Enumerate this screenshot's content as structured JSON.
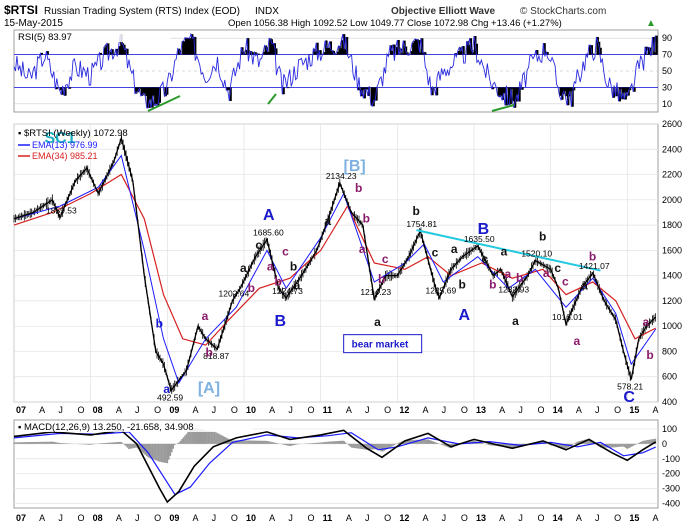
{
  "header": {
    "symbol": "$RTSI",
    "description": "Russian Trading System (RTS) Index (EOD)",
    "exchange": "INDX",
    "date": "15-May-2015",
    "watermark": "Objective Elliott Wave",
    "copyright": "© StockCharts.com",
    "quote": "Open 1056.38  High 1092.52  Low 1049.77  Close 1072.98  Chg +13.46 (+1.27%)",
    "up_arrow": "▲"
  },
  "rsi": {
    "label": "RSI(5) 83.97",
    "levels": [
      90,
      70,
      50,
      30,
      10
    ],
    "level_labels": [
      "90",
      "70",
      "50",
      "30",
      "10"
    ],
    "overbought": 70,
    "oversold": 30
  },
  "legend": {
    "price": "$RTSI (Weekly) 1072.98",
    "ema13": "EMA(13) 976.99",
    "ema34": "EMA(34) 985.21",
    "ema13_color": "#1a1aff",
    "ema34_color": "#d62020"
  },
  "macd": {
    "label": "MACD(12,26,9) 13.250, -21.658, 34.908",
    "ticks": [
      -400,
      -300,
      -200,
      -100,
      0,
      100
    ],
    "tick_labels": [
      "-400",
      "-300",
      "-200",
      "-100",
      "0",
      "100"
    ]
  },
  "x_axis": {
    "labels": [
      "07",
      "A",
      "J",
      "O",
      "08",
      "A",
      "J",
      "O",
      "09",
      "A",
      "J",
      "O",
      "10",
      "A",
      "J",
      "O",
      "11",
      "A",
      "J",
      "O",
      "12",
      "A",
      "J",
      "O",
      "13",
      "A",
      "J",
      "O",
      "14",
      "A",
      "J",
      "O",
      "15",
      "A"
    ]
  },
  "chart_data": {
    "type": "line",
    "title": "$RTSI Russian Trading System (RTS) Index (EOD)",
    "ylim": [
      400,
      2600
    ],
    "y_ticks": [
      400,
      600,
      800,
      1000,
      1200,
      1400,
      1600,
      1800,
      2000,
      2200,
      2400,
      2600
    ],
    "xlim": [
      2007.0,
      2015.4
    ],
    "price_points": [
      [
        2007.0,
        1850
      ],
      [
        2007.25,
        1900
      ],
      [
        2007.5,
        2000
      ],
      [
        2007.6,
        1859.53
      ],
      [
        2007.8,
        2150
      ],
      [
        2007.95,
        2250
      ],
      [
        2008.1,
        2050
      ],
      [
        2008.3,
        2300
      ],
      [
        2008.4,
        2487
      ],
      [
        2008.55,
        2150
      ],
      [
        2008.7,
        1400
      ],
      [
        2008.85,
        800
      ],
      [
        2008.95,
        700
      ],
      [
        2009.05,
        492.59
      ],
      [
        2009.25,
        650
      ],
      [
        2009.4,
        1000
      ],
      [
        2009.5,
        900
      ],
      [
        2009.65,
        818.87
      ],
      [
        2009.85,
        1202.64
      ],
      [
        2009.95,
        1300
      ],
      [
        2010.15,
        1550
      ],
      [
        2010.3,
        1685.6
      ],
      [
        2010.45,
        1300
      ],
      [
        2010.55,
        1224.73
      ],
      [
        2010.75,
        1400
      ],
      [
        2010.95,
        1600
      ],
      [
        2011.1,
        1850
      ],
      [
        2011.25,
        2134.23
      ],
      [
        2011.4,
        1900
      ],
      [
        2011.55,
        1800
      ],
      [
        2011.7,
        1214.23
      ],
      [
        2011.85,
        1400
      ],
      [
        2012.0,
        1400
      ],
      [
        2012.15,
        1550
      ],
      [
        2012.3,
        1754.81
      ],
      [
        2012.5,
        1300
      ],
      [
        2012.55,
        1225.69
      ],
      [
        2012.7,
        1450
      ],
      [
        2012.85,
        1550
      ],
      [
        2013.05,
        1635.5
      ],
      [
        2013.25,
        1400
      ],
      [
        2013.35,
        1450
      ],
      [
        2013.5,
        1232.93
      ],
      [
        2013.7,
        1400
      ],
      [
        2013.8,
        1520.1
      ],
      [
        2014.0,
        1450
      ],
      [
        2014.1,
        1300
      ],
      [
        2014.2,
        1016.01
      ],
      [
        2014.4,
        1300
      ],
      [
        2014.55,
        1421.07
      ],
      [
        2014.7,
        1200
      ],
      [
        2014.85,
        1050
      ],
      [
        2014.95,
        800
      ],
      [
        2015.05,
        578.21
      ],
      [
        2015.15,
        900
      ],
      [
        2015.25,
        1000
      ],
      [
        2015.37,
        1072.98
      ]
    ],
    "ema34_points": [
      [
        2007.0,
        1800
      ],
      [
        2007.5,
        1900
      ],
      [
        2008.0,
        2050
      ],
      [
        2008.4,
        2200
      ],
      [
        2008.7,
        1850
      ],
      [
        2008.95,
        1250
      ],
      [
        2009.2,
        900
      ],
      [
        2009.5,
        850
      ],
      [
        2009.8,
        1050
      ],
      [
        2010.2,
        1300
      ],
      [
        2010.6,
        1380
      ],
      [
        2011.0,
        1600
      ],
      [
        2011.35,
        1950
      ],
      [
        2011.7,
        1500
      ],
      [
        2012.1,
        1450
      ],
      [
        2012.4,
        1550
      ],
      [
        2012.7,
        1400
      ],
      [
        2013.1,
        1500
      ],
      [
        2013.5,
        1380
      ],
      [
        2013.9,
        1450
      ],
      [
        2014.2,
        1250
      ],
      [
        2014.55,
        1350
      ],
      [
        2014.85,
        1200
      ],
      [
        2015.1,
        900
      ],
      [
        2015.37,
        985.21
      ]
    ],
    "ema13_points": [
      [
        2007.0,
        1850
      ],
      [
        2007.6,
        1950
      ],
      [
        2008.1,
        2100
      ],
      [
        2008.4,
        2350
      ],
      [
        2008.7,
        1600
      ],
      [
        2008.95,
        900
      ],
      [
        2009.15,
        550
      ],
      [
        2009.5,
        900
      ],
      [
        2009.9,
        1150
      ],
      [
        2010.3,
        1600
      ],
      [
        2010.55,
        1300
      ],
      [
        2011.0,
        1700
      ],
      [
        2011.3,
        2050
      ],
      [
        2011.7,
        1350
      ],
      [
        2012.1,
        1500
      ],
      [
        2012.35,
        1650
      ],
      [
        2012.6,
        1350
      ],
      [
        2013.05,
        1550
      ],
      [
        2013.45,
        1300
      ],
      [
        2013.8,
        1450
      ],
      [
        2014.2,
        1150
      ],
      [
        2014.55,
        1380
      ],
      [
        2014.85,
        1100
      ],
      [
        2015.05,
        700
      ],
      [
        2015.37,
        976.99
      ]
    ],
    "price_labels": [
      {
        "x": 2007.6,
        "y": 1859.53,
        "text": "1859.53"
      },
      {
        "x": 2009.05,
        "y": 492.59,
        "text": "492.59"
      },
      {
        "x": 2009.65,
        "y": 818.87,
        "text": "818.87"
      },
      {
        "x": 2009.85,
        "y": 1202.64,
        "text": "1202.64"
      },
      {
        "x": 2010.3,
        "y": 1685.6,
        "text": "1685.60"
      },
      {
        "x": 2010.55,
        "y": 1224.73,
        "text": "1224.73"
      },
      {
        "x": 2011.25,
        "y": 2134.23,
        "text": "2134.23"
      },
      {
        "x": 2011.7,
        "y": 1214.23,
        "text": "1214.23"
      },
      {
        "x": 2012.3,
        "y": 1754.81,
        "text": "1754.81"
      },
      {
        "x": 2012.55,
        "y": 1225.69,
        "text": "1225.69"
      },
      {
        "x": 2013.05,
        "y": 1635.5,
        "text": "1635.50"
      },
      {
        "x": 2013.5,
        "y": 1232.93,
        "text": "1232.93"
      },
      {
        "x": 2013.8,
        "y": 1520.1,
        "text": "1520.10"
      },
      {
        "x": 2014.2,
        "y": 1016.01,
        "text": "1016.01"
      },
      {
        "x": 2014.55,
        "y": 1421.07,
        "text": "1421.07"
      },
      {
        "x": 2015.05,
        "y": 578.21,
        "text": "578.21"
      }
    ],
    "wave_labels": [
      {
        "x": 2009.0,
        "y": 470,
        "text": "a",
        "color": "#1a1acc"
      },
      {
        "x": 2009.5,
        "y": 1050,
        "text": "a",
        "color": "#8a1a6a"
      },
      {
        "x": 2009.55,
        "y": 760,
        "text": "b",
        "color": "#8a1a6a"
      },
      {
        "x": 2009.45,
        "y": 470,
        "text": "[A]",
        "color": "#7fb2e0"
      },
      {
        "x": 2008.9,
        "y": 990,
        "text": "b",
        "color": "#1a1acc"
      },
      {
        "x": 2010.0,
        "y": 1430,
        "text": "a",
        "color": "#111111"
      },
      {
        "x": 2010.1,
        "y": 1270,
        "text": "b",
        "color": "#8a1a6a"
      },
      {
        "x": 2010.2,
        "y": 1610,
        "text": "c",
        "color": "#111111"
      },
      {
        "x": 2010.3,
        "y": 1840,
        "text": "A",
        "color": "#1a1acc"
      },
      {
        "x": 2010.35,
        "y": 1440,
        "text": "a",
        "color": "#8a1a6a"
      },
      {
        "x": 2010.45,
        "y": 1320,
        "text": "b",
        "color": "#8a1a6a"
      },
      {
        "x": 2010.45,
        "y": 1000,
        "text": "B",
        "color": "#1a1acc"
      },
      {
        "x": 2010.65,
        "y": 1440,
        "text": "b",
        "color": "#111111"
      },
      {
        "x": 2010.7,
        "y": 1290,
        "text": "a",
        "color": "#111111"
      },
      {
        "x": 2010.55,
        "y": 1560,
        "text": "c",
        "color": "#8a1a6a"
      },
      {
        "x": 2011.1,
        "y": 1800,
        "text": "a",
        "color": "#111111"
      },
      {
        "x": 2011.35,
        "y": 2230,
        "text": "[B]",
        "color": "#7fb2e0"
      },
      {
        "x": 2011.5,
        "y": 2060,
        "text": "b",
        "color": "#8a1a6a"
      },
      {
        "x": 2011.6,
        "y": 1820,
        "text": "b",
        "color": "#8a1a6a"
      },
      {
        "x": 2011.55,
        "y": 1580,
        "text": "a",
        "color": "#8a1a6a"
      },
      {
        "x": 2011.85,
        "y": 1500,
        "text": "c",
        "color": "#8a1a6a"
      },
      {
        "x": 2011.8,
        "y": 1340,
        "text": "b",
        "color": "#8a1a6a"
      },
      {
        "x": 2011.75,
        "y": 1000,
        "text": "a",
        "color": "#111111"
      },
      {
        "x": 2012.25,
        "y": 1880,
        "text": "b",
        "color": "#111111"
      },
      {
        "x": 2012.5,
        "y": 1550,
        "text": "c",
        "color": "#111111"
      },
      {
        "x": 2012.85,
        "y": 1050,
        "text": "A",
        "color": "#1a1acc"
      },
      {
        "x": 2012.75,
        "y": 1580,
        "text": "a",
        "color": "#111111"
      },
      {
        "x": 2012.85,
        "y": 1300,
        "text": "b",
        "color": "#111111"
      },
      {
        "x": 2013.1,
        "y": 1730,
        "text": "B",
        "color": "#1a1acc"
      },
      {
        "x": 2013.15,
        "y": 1500,
        "text": "c",
        "color": "#111111"
      },
      {
        "x": 2013.25,
        "y": 1300,
        "text": "b",
        "color": "#8a1a6a"
      },
      {
        "x": 2013.4,
        "y": 1560,
        "text": "a",
        "color": "#111111"
      },
      {
        "x": 2013.45,
        "y": 1380,
        "text": "a",
        "color": "#8a1a6a"
      },
      {
        "x": 2013.6,
        "y": 1350,
        "text": "b",
        "color": "#8a1a6a"
      },
      {
        "x": 2013.55,
        "y": 1010,
        "text": "a",
        "color": "#111111"
      },
      {
        "x": 2013.9,
        "y": 1680,
        "text": "b",
        "color": "#111111"
      },
      {
        "x": 2013.95,
        "y": 1390,
        "text": "a",
        "color": "#8a1a6a"
      },
      {
        "x": 2014.1,
        "y": 1430,
        "text": "c",
        "color": "#111111"
      },
      {
        "x": 2014.2,
        "y": 1320,
        "text": "c",
        "color": "#8a1a6a"
      },
      {
        "x": 2014.35,
        "y": 850,
        "text": "a",
        "color": "#8a1a6a"
      },
      {
        "x": 2014.55,
        "y": 1520,
        "text": "b",
        "color": "#8a1a6a"
      },
      {
        "x": 2014.45,
        "y": 1290,
        "text": "a",
        "color": "#111111"
      },
      {
        "x": 2015.0,
        "y": 400,
        "text": "C",
        "color": "#1a1acc"
      },
      {
        "x": 2015.25,
        "y": 1000,
        "text": "a",
        "color": "#8a1a6a"
      },
      {
        "x": 2015.3,
        "y": 740,
        "text": "b",
        "color": "#8a1a6a"
      },
      {
        "x": 2007.45,
        "y": 2450,
        "text": "SC1",
        "color": "#1ab0c0"
      }
    ],
    "annotations": [
      {
        "type": "trendline",
        "x1": 2012.25,
        "y1": 1760,
        "x2": 2014.65,
        "y2": 1440,
        "color": "#20c8e0"
      },
      {
        "type": "box",
        "x": 2011.3,
        "y": 830,
        "text": "bear market"
      }
    ],
    "rsi_points": [
      [
        2007.0,
        60
      ],
      [
        2007.2,
        40
      ],
      [
        2007.4,
        70
      ],
      [
        2007.6,
        25
      ],
      [
        2007.8,
        55
      ],
      [
        2008.0,
        45
      ],
      [
        2008.2,
        70
      ],
      [
        2008.4,
        85
      ],
      [
        2008.55,
        40
      ],
      [
        2008.7,
        10
      ],
      [
        2008.85,
        15
      ],
      [
        2009.0,
        30
      ],
      [
        2009.15,
        75
      ],
      [
        2009.3,
        90
      ],
      [
        2009.5,
        45
      ],
      [
        2009.65,
        65
      ],
      [
        2009.8,
        25
      ],
      [
        2010.0,
        80
      ],
      [
        2010.2,
        60
      ],
      [
        2010.35,
        85
      ],
      [
        2010.5,
        30
      ],
      [
        2010.7,
        55
      ],
      [
        2010.9,
        70
      ],
      [
        2011.1,
        80
      ],
      [
        2011.3,
        88
      ],
      [
        2011.5,
        35
      ],
      [
        2011.7,
        15
      ],
      [
        2011.9,
        70
      ],
      [
        2012.1,
        80
      ],
      [
        2012.3,
        85
      ],
      [
        2012.45,
        25
      ],
      [
        2012.6,
        50
      ],
      [
        2012.8,
        65
      ],
      [
        2013.0,
        82
      ],
      [
        2013.2,
        40
      ],
      [
        2013.4,
        20
      ],
      [
        2013.55,
        15
      ],
      [
        2013.75,
        60
      ],
      [
        2013.95,
        80
      ],
      [
        2014.1,
        30
      ],
      [
        2014.25,
        15
      ],
      [
        2014.45,
        65
      ],
      [
        2014.6,
        82
      ],
      [
        2014.75,
        35
      ],
      [
        2014.9,
        20
      ],
      [
        2015.0,
        12
      ],
      [
        2015.15,
        55
      ],
      [
        2015.3,
        78
      ],
      [
        2015.37,
        83.97
      ]
    ],
    "macd_points": [
      [
        2007.0,
        50
      ],
      [
        2007.5,
        80
      ],
      [
        2008.0,
        60
      ],
      [
        2008.4,
        90
      ],
      [
        2008.6,
        0
      ],
      [
        2008.75,
        -150
      ],
      [
        2008.9,
        -300
      ],
      [
        2009.0,
        -390
      ],
      [
        2009.15,
        -320
      ],
      [
        2009.35,
        -150
      ],
      [
        2009.6,
        -20
      ],
      [
        2009.9,
        40
      ],
      [
        2010.3,
        80
      ],
      [
        2010.6,
        30
      ],
      [
        2011.0,
        60
      ],
      [
        2011.3,
        90
      ],
      [
        2011.6,
        -30
      ],
      [
        2011.8,
        -90
      ],
      [
        2012.1,
        20
      ],
      [
        2012.4,
        70
      ],
      [
        2012.7,
        -20
      ],
      [
        2013.0,
        30
      ],
      [
        2013.5,
        -30
      ],
      [
        2013.9,
        20
      ],
      [
        2014.2,
        -40
      ],
      [
        2014.5,
        30
      ],
      [
        2014.8,
        -60
      ],
      [
        2015.0,
        -110
      ],
      [
        2015.2,
        -40
      ],
      [
        2015.37,
        13.25
      ]
    ],
    "macd_signal_points": [
      [
        2007.0,
        40
      ],
      [
        2007.6,
        70
      ],
      [
        2008.1,
        65
      ],
      [
        2008.5,
        80
      ],
      [
        2008.75,
        -60
      ],
      [
        2008.95,
        -220
      ],
      [
        2009.1,
        -340
      ],
      [
        2009.3,
        -290
      ],
      [
        2009.55,
        -130
      ],
      [
        2009.85,
        10
      ],
      [
        2010.3,
        60
      ],
      [
        2010.7,
        40
      ],
      [
        2011.1,
        55
      ],
      [
        2011.4,
        75
      ],
      [
        2011.75,
        -40
      ],
      [
        2012.0,
        -20
      ],
      [
        2012.4,
        40
      ],
      [
        2012.8,
        0
      ],
      [
        2013.2,
        15
      ],
      [
        2013.6,
        -10
      ],
      [
        2014.0,
        10
      ],
      [
        2014.35,
        -20
      ],
      [
        2014.65,
        10
      ],
      [
        2014.95,
        -80
      ],
      [
        2015.2,
        -60
      ],
      [
        2015.37,
        -21.658
      ]
    ]
  }
}
